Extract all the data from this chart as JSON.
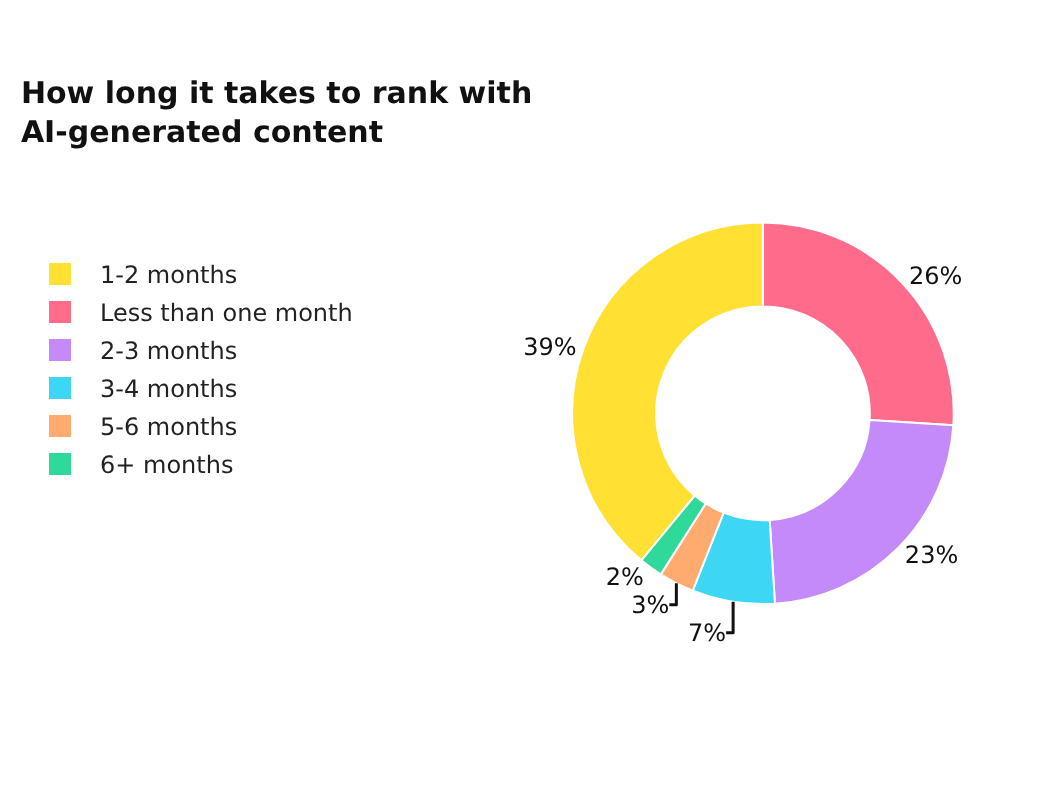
{
  "chart_data": {
    "type": "donut",
    "title": "How long it takes to rank with AI-generated content",
    "categories": [
      "1-2 months",
      "Less than one month",
      "2-3 months",
      "3-4 months",
      "5-6 months",
      "6+ months"
    ],
    "values": [
      39,
      26,
      23,
      7,
      3,
      2
    ],
    "colors": [
      "#ffe033",
      "#ff6b8a",
      "#c58af9",
      "#3dd6f5",
      "#ffab70",
      "#2fd99a"
    ],
    "value_labels": [
      "39%",
      "26%",
      "23%",
      "7%",
      "3%",
      "2%"
    ],
    "legend": "left"
  }
}
